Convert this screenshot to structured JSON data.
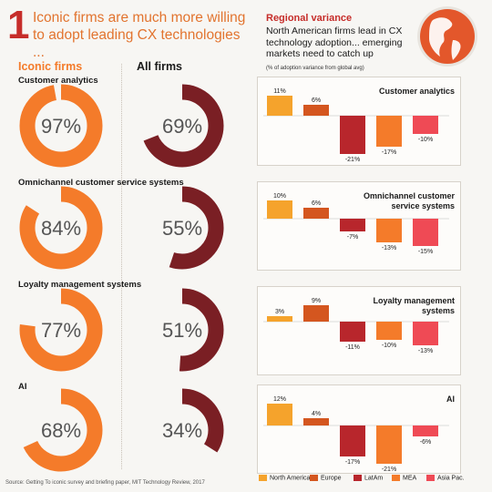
{
  "header": {
    "number": "1",
    "headline": "Iconic firms are much more willing to adopt leading CX technologies ..."
  },
  "columns": {
    "iconic": "Iconic firms",
    "all": "All firms"
  },
  "source": "Source: Getting To iconic survey and briefing paper, MIT Technology Review, 2017",
  "regional": {
    "title": "Regional variance",
    "subtitle": "North American firms lead in CX technology adoption... emerging markets need to catch up",
    "note": "(% of adoption variance from global avg)"
  },
  "colors": {
    "iconic": "#f47b2a",
    "all": "#7a1f24",
    "ring_bg": "#f7f6f3",
    "North America": "#f5a32c",
    "Europe": "#d4561f",
    "LatAm": "#b8262c",
    "MEA": "#f47b2a",
    "Asia Pac.": "#ef4a55"
  },
  "legend": [
    "North America",
    "Europe",
    "LatAm",
    "MEA",
    "Asia Pac."
  ],
  "chart_data": [
    {
      "type": "donut",
      "title": "Iconic firms vs All firms",
      "categories": [
        "Customer analytics",
        "Omnichannel customer service systems",
        "Loyalty management systems",
        "AI"
      ],
      "series": [
        {
          "name": "Iconic firms",
          "values": [
            97,
            84,
            77,
            68
          ],
          "labels": [
            "97%",
            "84%",
            "77%",
            "68%"
          ]
        },
        {
          "name": "All firms",
          "values": [
            69,
            55,
            51,
            34
          ],
          "labels": [
            "69%",
            "55%",
            "51%",
            "34%"
          ]
        }
      ]
    },
    {
      "type": "bar",
      "title": "Customer analytics",
      "categories": [
        "North America",
        "Europe",
        "LatAm",
        "MEA",
        "Asia Pac."
      ],
      "values": [
        11,
        6,
        -21,
        -17,
        -10
      ],
      "labels": [
        "11%",
        "6%",
        "-21%",
        "-17%",
        "-10%"
      ]
    },
    {
      "type": "bar",
      "title": "Omnichannel customer service systems",
      "categories": [
        "North America",
        "Europe",
        "LatAm",
        "MEA",
        "Asia Pac."
      ],
      "values": [
        10,
        6,
        -7,
        -13,
        -15
      ],
      "labels": [
        "10%",
        "6%",
        "-7%",
        "-13%",
        "-15%"
      ]
    },
    {
      "type": "bar",
      "title": "Loyalty management systems",
      "categories": [
        "North America",
        "Europe",
        "LatAm",
        "MEA",
        "Asia Pac."
      ],
      "values": [
        3,
        9,
        -11,
        -10,
        -13
      ],
      "labels": [
        "3%",
        "9%",
        "-11%",
        "-10%",
        "-13%"
      ]
    },
    {
      "type": "bar",
      "title": "AI",
      "categories": [
        "North America",
        "Europe",
        "LatAm",
        "MEA",
        "Asia Pac."
      ],
      "values": [
        12,
        4,
        -17,
        -21,
        -6
      ],
      "labels": [
        "12%",
        "4%",
        "-17%",
        "-21%",
        "-6%"
      ]
    }
  ]
}
